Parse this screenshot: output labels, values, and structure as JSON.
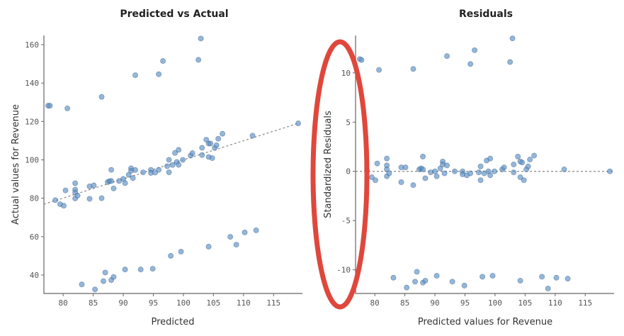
{
  "chart_data": [
    {
      "type": "scatter",
      "title": "Predicted vs Actual",
      "xlabel": "Predicted",
      "ylabel": "Actual values for Revenue",
      "xlim": [
        76.8,
        119.8
      ],
      "ylim": [
        30.4,
        164.8
      ],
      "xticks": [
        "80",
        "85",
        "90",
        "95",
        "100",
        "105",
        "110",
        "115"
      ],
      "yticks": [
        "40",
        "60",
        "80",
        "100",
        "120",
        "140",
        "160"
      ],
      "reference_line": {
        "style": "dotted",
        "from": [
          76.8,
          76.9
        ],
        "to": [
          119.1,
          119.0
        ]
      },
      "grid": false,
      "point_color": "#5b8fc4"
    },
    {
      "type": "scatter",
      "title": "Residuals",
      "xlabel": "Predicted values for Revenue",
      "ylabel": "Standardized Residuals",
      "xlim": [
        76.8,
        119.8
      ],
      "ylim": [
        -12.4,
        13.8
      ],
      "xticks": [
        "80",
        "85",
        "90",
        "95",
        "100",
        "105",
        "110",
        "115"
      ],
      "yticks": [
        "-10",
        "-5",
        "0",
        "5",
        "10"
      ],
      "reference_line": {
        "style": "dotted",
        "y": 0
      },
      "grid": false,
      "point_color": "#5b8fc4"
    }
  ],
  "points": [
    [
      77.5,
      128.2,
      11.4
    ],
    [
      77.8,
      128.2,
      11.3
    ],
    [
      80.7,
      126.8,
      10.3
    ],
    [
      86.4,
      132.8,
      10.4
    ],
    [
      92.0,
      144.1,
      11.7
    ],
    [
      95.9,
      144.6,
      10.9
    ],
    [
      96.6,
      151.5,
      12.3
    ],
    [
      102.5,
      152.1,
      11.1
    ],
    [
      102.9,
      163.2,
      13.5
    ],
    [
      78.7,
      79.0,
      0.1
    ],
    [
      79.5,
      76.9,
      -0.6
    ],
    [
      80.1,
      76.1,
      -0.9
    ],
    [
      80.4,
      84.1,
      0.8
    ],
    [
      82.0,
      87.8,
      1.3
    ],
    [
      82.0,
      84.5,
      0.6
    ],
    [
      82.0,
      83.0,
      0.2
    ],
    [
      82.0,
      79.9,
      -0.5
    ],
    [
      82.4,
      81.4,
      -0.2
    ],
    [
      84.4,
      86.2,
      0.4
    ],
    [
      85.1,
      86.7,
      0.4
    ],
    [
      84.4,
      79.7,
      -1.1
    ],
    [
      86.4,
      80.0,
      -1.4
    ],
    [
      87.4,
      88.4,
      0.2
    ],
    [
      87.7,
      88.9,
      0.3
    ],
    [
      88.0,
      89.0,
      0.2
    ],
    [
      88.0,
      94.8,
      1.5
    ],
    [
      88.4,
      85.1,
      -0.7
    ],
    [
      89.3,
      89.0,
      -0.1
    ],
    [
      90.0,
      90.1,
      0.0
    ],
    [
      90.3,
      87.9,
      -0.5
    ],
    [
      90.9,
      92.2,
      0.3
    ],
    [
      91.3,
      95.6,
      1.0
    ],
    [
      91.3,
      94.3,
      0.7
    ],
    [
      91.6,
      90.5,
      -0.2
    ],
    [
      92.0,
      94.7,
      0.6
    ],
    [
      93.3,
      93.5,
      0.0
    ],
    [
      94.6,
      94.8,
      0.0
    ],
    [
      94.6,
      93.2,
      -0.3
    ],
    [
      95.3,
      93.4,
      -0.4
    ],
    [
      95.9,
      94.8,
      -0.2
    ],
    [
      97.3,
      96.7,
      -0.1
    ],
    [
      97.6,
      100.0,
      0.5
    ],
    [
      97.6,
      93.5,
      -0.9
    ],
    [
      98.2,
      97.3,
      -0.2
    ],
    [
      98.6,
      103.6,
      1.1
    ],
    [
      98.9,
      98.9,
      0.0
    ],
    [
      99.2,
      105.2,
      1.3
    ],
    [
      99.2,
      97.4,
      -0.4
    ],
    [
      99.9,
      100.0,
      0.0
    ],
    [
      101.2,
      102.2,
      0.2
    ],
    [
      101.5,
      103.5,
      0.4
    ],
    [
      103.1,
      106.3,
      0.7
    ],
    [
      103.1,
      102.5,
      -0.1
    ],
    [
      103.8,
      110.5,
      1.5
    ],
    [
      104.2,
      108.5,
      1.0
    ],
    [
      104.2,
      101.5,
      -0.6
    ],
    [
      104.5,
      108.5,
      0.9
    ],
    [
      104.8,
      100.9,
      -0.9
    ],
    [
      105.2,
      106.2,
      0.2
    ],
    [
      105.5,
      107.6,
      0.5
    ],
    [
      105.8,
      111.0,
      1.2
    ],
    [
      106.5,
      113.6,
      1.6
    ],
    [
      111.5,
      112.6,
      0.2
    ],
    [
      119.1,
      119.0,
      0.0
    ],
    [
      83.1,
      35.1,
      -10.8
    ],
    [
      85.3,
      32.5,
      -11.8
    ],
    [
      86.7,
      36.8,
      -11.2
    ],
    [
      87.0,
      41.3,
      -10.2
    ],
    [
      88.0,
      37.4,
      -11.3
    ],
    [
      88.4,
      39.0,
      -11.1
    ],
    [
      90.3,
      42.9,
      -10.6
    ],
    [
      92.9,
      42.9,
      -11.2
    ],
    [
      94.9,
      43.3,
      -11.6
    ],
    [
      97.9,
      50.0,
      -10.7
    ],
    [
      99.6,
      52.2,
      -10.6
    ],
    [
      104.2,
      54.8,
      -11.1
    ],
    [
      107.8,
      59.9,
      -10.7
    ],
    [
      108.8,
      55.8,
      -11.9
    ],
    [
      110.2,
      62.2,
      -10.8
    ],
    [
      112.1,
      63.3,
      -10.9
    ]
  ],
  "annotation": {
    "shape": "ellipse",
    "color": "#e0473c",
    "target": "Standardized Residuals axis"
  }
}
